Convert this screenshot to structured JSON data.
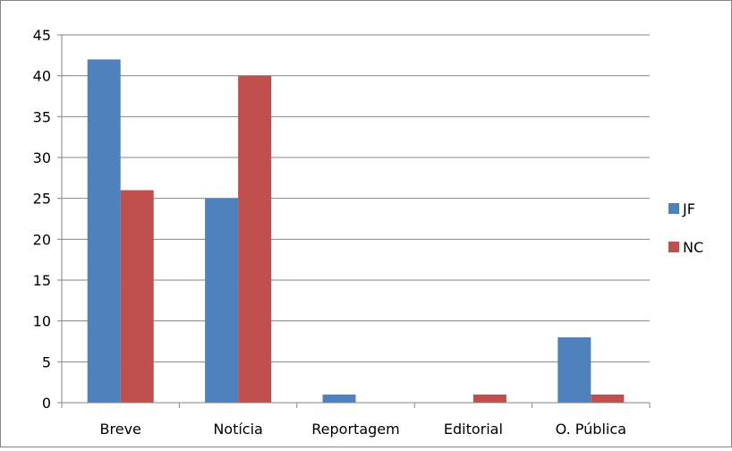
{
  "chart_data": {
    "type": "bar",
    "categories": [
      "Breve",
      "Notícia",
      "Reportagem",
      "Editorial",
      "O. Pública"
    ],
    "series": [
      {
        "name": "JF",
        "values": [
          42,
          25,
          1,
          0,
          8
        ],
        "color": "#4F81BD"
      },
      {
        "name": "NC",
        "values": [
          26,
          40,
          0,
          1,
          1
        ],
        "color": "#C0504D"
      }
    ],
    "title": "",
    "xlabel": "",
    "ylabel": "",
    "ylim": [
      0,
      45
    ],
    "yticks": [
      "0",
      "5",
      "10",
      "15",
      "20",
      "25",
      "30",
      "35",
      "40",
      "45"
    ],
    "grid": true,
    "legend_position": "right",
    "gridline_color": "#868686"
  }
}
